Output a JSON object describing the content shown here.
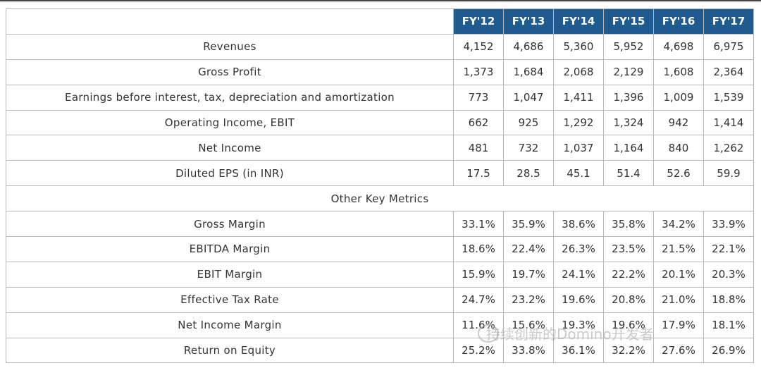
{
  "table": {
    "columns": [
      "FY'12",
      "FY'13",
      "FY'14",
      "FY'15",
      "FY'16",
      "FY'17"
    ],
    "rows": [
      {
        "label": "Revenues",
        "values": [
          "4,152",
          "4,686",
          "5,360",
          "5,952",
          "4,698",
          "6,975"
        ]
      },
      {
        "label": "Gross Profit",
        "values": [
          "1,373",
          "1,684",
          "2,068",
          "2,129",
          "1,608",
          "2,364"
        ]
      },
      {
        "label": "Earnings before interest, tax, depreciation and amortization",
        "values": [
          "773",
          "1,047",
          "1,411",
          "1,396",
          "1,009",
          "1,539"
        ]
      },
      {
        "label": "Operating Income, EBIT",
        "values": [
          "662",
          "925",
          "1,292",
          "1,324",
          "942",
          "1,414"
        ]
      },
      {
        "label": "Net Income",
        "values": [
          "481",
          "732",
          "1,037",
          "1,164",
          "840",
          "1,262"
        ]
      },
      {
        "label": "Diluted EPS (in INR)",
        "values": [
          "17.5",
          "28.5",
          "45.1",
          "51.4",
          "52.6",
          "59.9"
        ]
      },
      {
        "label": "Other Key Metrics"
      },
      {
        "label": "Gross Margin",
        "values": [
          "33.1%",
          "35.9%",
          "38.6%",
          "35.8%",
          "34.2%",
          "33.9%"
        ]
      },
      {
        "label": "EBITDA Margin",
        "values": [
          "18.6%",
          "22.4%",
          "26.3%",
          "23.5%",
          "21.5%",
          "22.1%"
        ]
      },
      {
        "label": "EBIT Margin",
        "values": [
          "15.9%",
          "19.7%",
          "24.1%",
          "22.2%",
          "20.1%",
          "20.3%"
        ]
      },
      {
        "label": "Effective Tax Rate",
        "values": [
          "24.7%",
          "23.2%",
          "19.6%",
          "20.8%",
          "21.0%",
          "18.8%"
        ]
      },
      {
        "label": "Net Income Margin",
        "values": [
          "11.6%",
          "15.6%",
          "19.3%",
          "19.6%",
          "17.9%",
          "18.1%"
        ]
      },
      {
        "label": "Return on Equity",
        "values": [
          "25.2%",
          "33.8%",
          "36.1%",
          "32.2%",
          "27.6%",
          "26.9%"
        ]
      }
    ]
  },
  "watermark": "持续创新的Domino开发者"
}
